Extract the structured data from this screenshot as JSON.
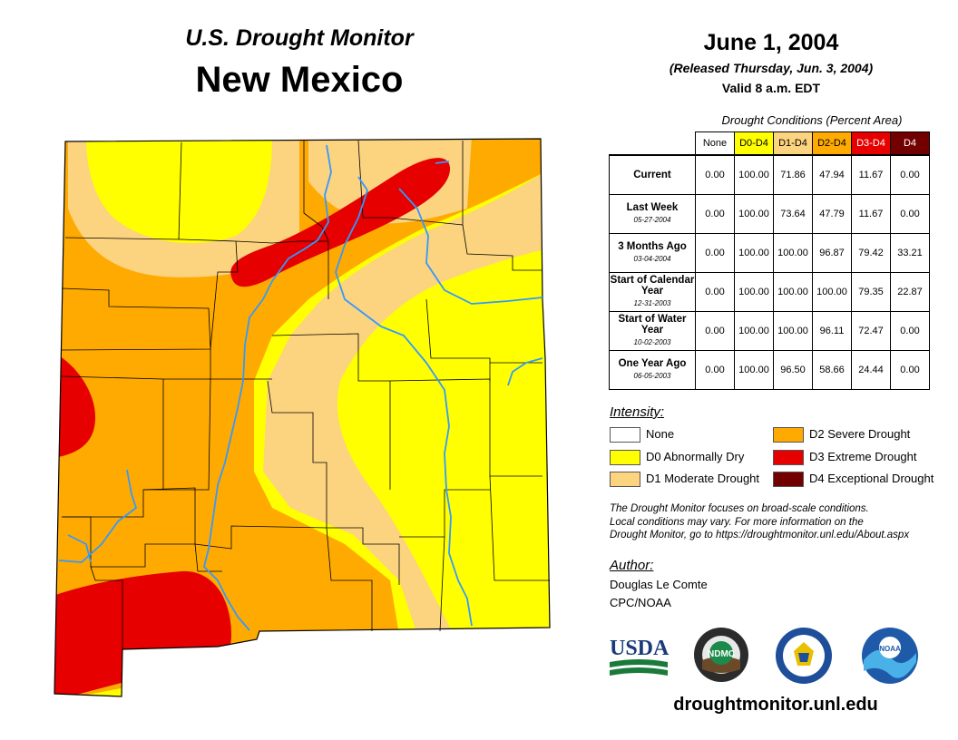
{
  "header": {
    "subtitle": "U.S. Drought Monitor",
    "state": "New Mexico",
    "date": "June 1, 2004",
    "released": "(Released Thursday, Jun. 3, 2004)",
    "valid": "Valid 8 a.m. EDT"
  },
  "table": {
    "caption": "Drought Conditions (Percent Area)",
    "columns": [
      "None",
      "D0-D4",
      "D1-D4",
      "D2-D4",
      "D3-D4",
      "D4"
    ],
    "rows": [
      {
        "label": "Current",
        "date": "",
        "values": [
          "0.00",
          "100.00",
          "71.86",
          "47.94",
          "11.67",
          "0.00"
        ]
      },
      {
        "label": "Last Week",
        "date": "05-27-2004",
        "values": [
          "0.00",
          "100.00",
          "73.64",
          "47.79",
          "11.67",
          "0.00"
        ]
      },
      {
        "label": "3 Months Ago",
        "date": "03-04-2004",
        "values": [
          "0.00",
          "100.00",
          "100.00",
          "96.87",
          "79.42",
          "33.21"
        ]
      },
      {
        "label": "Start of Calendar Year",
        "date": "12-31-2003",
        "values": [
          "0.00",
          "100.00",
          "100.00",
          "100.00",
          "79.35",
          "22.87"
        ]
      },
      {
        "label": "Start of Water Year",
        "date": "10-02-2003",
        "values": [
          "0.00",
          "100.00",
          "100.00",
          "96.11",
          "72.47",
          "0.00"
        ]
      },
      {
        "label": "One Year Ago",
        "date": "06-05-2003",
        "values": [
          "0.00",
          "100.00",
          "96.50",
          "58.66",
          "24.44",
          "0.00"
        ]
      }
    ]
  },
  "legend": {
    "title": "Intensity:",
    "items": [
      {
        "label": "None",
        "color": "#ffffff"
      },
      {
        "label": "D0 Abnormally Dry",
        "color": "#ffff00"
      },
      {
        "label": "D1 Moderate Drought",
        "color": "#fcd37f"
      },
      {
        "label": "D2 Severe Drought",
        "color": "#ffaa00"
      },
      {
        "label": "D3 Extreme Drought",
        "color": "#e60000"
      },
      {
        "label": "D4 Exceptional Drought",
        "color": "#730000"
      }
    ]
  },
  "note": {
    "line1": "The Drought Monitor focuses on broad-scale conditions.",
    "line2": "Local conditions may vary. For more information on the",
    "line3": "Drought Monitor, go to https://droughtmonitor.unl.edu/About.aspx"
  },
  "author": {
    "title": "Author:",
    "name": "Douglas Le Comte",
    "org": "CPC/NOAA"
  },
  "logos": {
    "usda": "USDA",
    "ndmc": "NDMC",
    "noaa": "NOAA"
  },
  "website": "droughtmonitor.unl.edu",
  "colors": {
    "river": "#3399ff",
    "county_line": "#000000"
  }
}
